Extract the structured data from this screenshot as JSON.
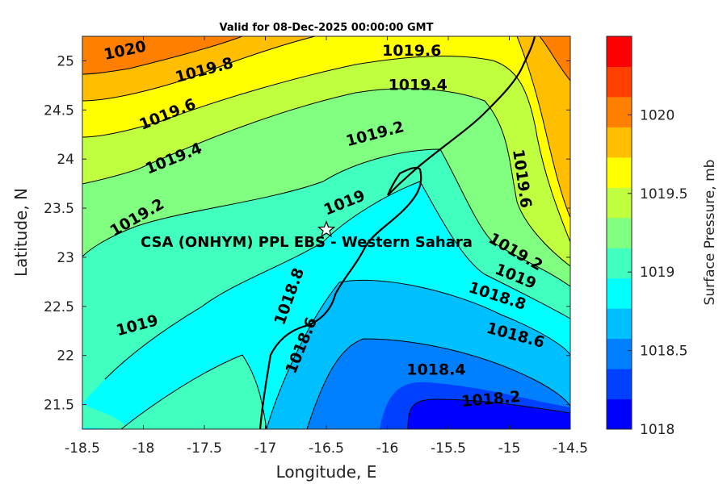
{
  "title": "Valid for 08-Dec-2025 00:00:00 GMT",
  "x_axis": {
    "label": "Longitude, E",
    "range": [
      -18.5,
      -14.5
    ],
    "ticks": [
      "-18.5",
      "-18",
      "-17.5",
      "-17",
      "-16.5",
      "-16",
      "-15.5",
      "-15",
      "-14.5"
    ]
  },
  "y_axis": {
    "label": "Latitude, N",
    "range": [
      21.25,
      25.25
    ],
    "ticks": [
      "21.5",
      "22",
      "22.5",
      "23",
      "23.5",
      "24",
      "24.5",
      "25"
    ]
  },
  "colorbar": {
    "label": "Surface Pressure, mb",
    "range": [
      1018,
      1020.5
    ],
    "ticks": [
      "1018",
      "1018.5",
      "1019",
      "1019.5",
      "1020"
    ],
    "colors": [
      "#0000ff",
      "#0040ff",
      "#0080ff",
      "#00bfff",
      "#00ffff",
      "#40ffbf",
      "#80ff80",
      "#bfff40",
      "#ffff00",
      "#ffbf00",
      "#ff8000",
      "#ff4000",
      "#ff0000"
    ]
  },
  "station": {
    "name": "CSA (ONHYM) PPL EBS  - Western Sahara",
    "lon": -16.5,
    "lat": 23.28,
    "marker": "star-icon"
  },
  "contour_labels": [
    {
      "text": "1020",
      "lon": -18.15,
      "lat": 25.1,
      "angle": -12
    },
    {
      "text": "1019.8",
      "lon": -17.5,
      "lat": 24.9,
      "angle": -15
    },
    {
      "text": "1019.6",
      "lon": -15.8,
      "lat": 25.1,
      "angle": 0
    },
    {
      "text": "1019.6",
      "lon": -17.8,
      "lat": 24.45,
      "angle": -22
    },
    {
      "text": "1019.4",
      "lon": -15.75,
      "lat": 24.75,
      "angle": 0
    },
    {
      "text": "1019.4",
      "lon": -17.75,
      "lat": 24.0,
      "angle": -22
    },
    {
      "text": "1019.2",
      "lon": -16.1,
      "lat": 24.25,
      "angle": -15
    },
    {
      "text": "1019.2",
      "lon": -18.05,
      "lat": 23.4,
      "angle": -30
    },
    {
      "text": "1019.6",
      "lon": -14.9,
      "lat": 23.8,
      "angle": 82
    },
    {
      "text": "1019",
      "lon": -16.35,
      "lat": 23.55,
      "angle": -22
    },
    {
      "text": "1019.2",
      "lon": -14.95,
      "lat": 23.05,
      "angle": 30
    },
    {
      "text": "1019",
      "lon": -14.95,
      "lat": 22.8,
      "angle": 22
    },
    {
      "text": "1018.8",
      "lon": -15.1,
      "lat": 22.6,
      "angle": 18
    },
    {
      "text": "1019",
      "lon": -18.05,
      "lat": 22.3,
      "angle": -15
    },
    {
      "text": "1018.8",
      "lon": -16.8,
      "lat": 22.6,
      "angle": -70
    },
    {
      "text": "1018.6",
      "lon": -16.7,
      "lat": 22.1,
      "angle": -68
    },
    {
      "text": "1018.6",
      "lon": -14.95,
      "lat": 22.2,
      "angle": 15
    },
    {
      "text": "1018.4",
      "lon": -15.6,
      "lat": 21.85,
      "angle": 0
    },
    {
      "text": "1018.2",
      "lon": -15.15,
      "lat": 21.55,
      "angle": -5
    }
  ]
}
